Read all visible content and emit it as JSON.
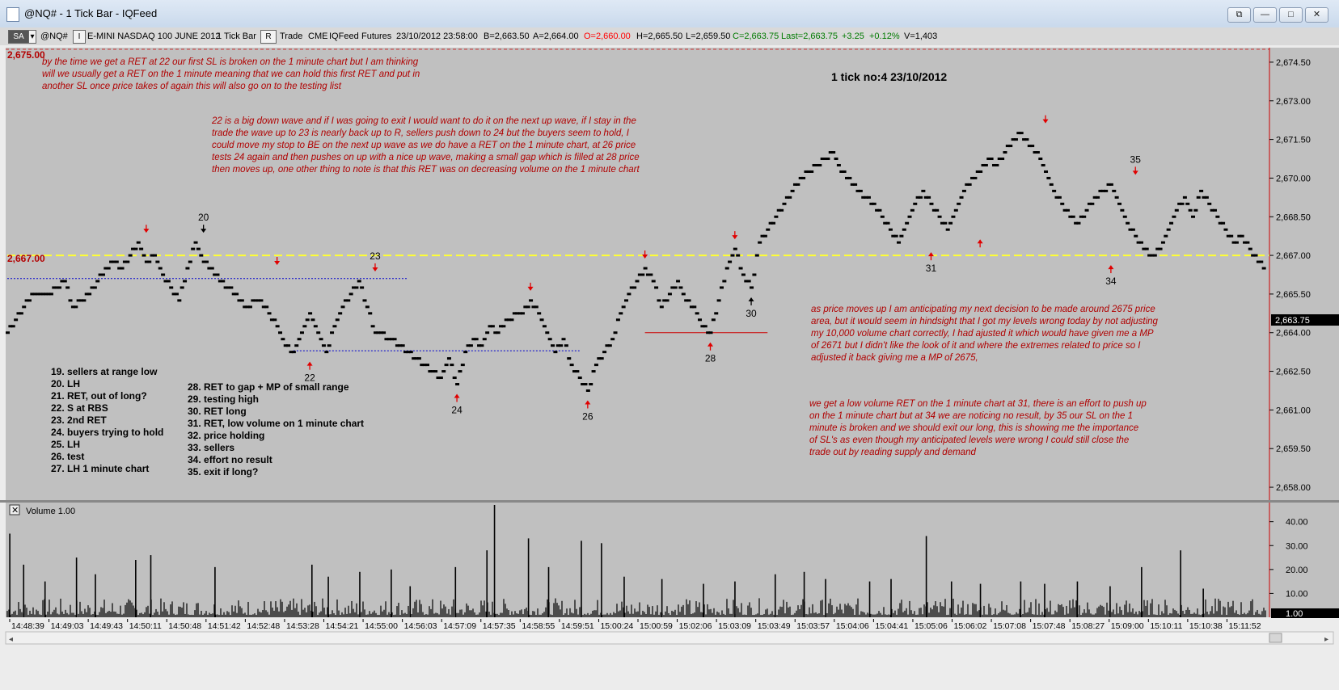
{
  "window": {
    "title": "@NQ# - 1 Tick Bar - IQFeed",
    "controls": [
      "⧉",
      "—",
      "□",
      "✕"
    ]
  },
  "toolbar": {
    "sa_label": "SA",
    "symbol": "@NQ#",
    "i_btn": "I",
    "instrument": "E-MINI NASDAQ 100 JUNE 2012",
    "interval": "1 Tick Bar",
    "r_btn": "R",
    "type": "Trade",
    "exchange": "CME",
    "feed": "IQFeed",
    "asset": "Futures",
    "datetime": "23/10/2012  23:58:00",
    "bid": "B=2,663.50",
    "ask": "A=2,664.00",
    "open": "O=2,660.00",
    "high": "H=2,665.50",
    "low": "L=2,659.50",
    "close": "C=2,663.75",
    "last": "Last=2,663.75",
    "change": "+3.25",
    "change_pct": "+0.12%",
    "volume": "V=1,403",
    "colors": {
      "open": "#ff0000",
      "close": "#007a00",
      "last": "#007a00",
      "change": "#007a00"
    }
  },
  "chart_data": [
    {
      "type": "scatter",
      "title": "1 tick no:4 23/10/2012",
      "ylim": [
        2657.5,
        2675.0
      ],
      "y_ticks": [
        "2,674.50",
        "2,673.00",
        "2,671.50",
        "2,670.00",
        "2,668.50",
        "2,667.00",
        "2,665.50",
        "2,664.00",
        "2,662.50",
        "2,661.00",
        "2,659.50",
        "2,658.00"
      ],
      "x_tick_labels": [
        "14:48:39",
        "14:49:03",
        "14:49:43",
        "14:50:11",
        "14:50:48",
        "14:51:42",
        "14:52:48",
        "14:53:28",
        "14:54:21",
        "14:55:00",
        "14:56:03",
        "14:57:09",
        "14:57:35",
        "14:58:55",
        "14:59:51",
        "15:00:24",
        "15:00:59",
        "15:02:06",
        "15:03:09",
        "15:03:49",
        "15:03:57",
        "15:04:06",
        "15:04:41",
        "15:05:06",
        "15:06:02",
        "15:07:08",
        "15:07:48",
        "15:08:27",
        "15:09:00",
        "15:10:11",
        "15:10:38",
        "15:11:52"
      ],
      "price_path": [
        [
          0,
          2664.0
        ],
        [
          2,
          2665.0
        ],
        [
          3,
          2665.5
        ],
        [
          5,
          2665.5
        ],
        [
          7,
          2666.0
        ],
        [
          8,
          2665.0
        ],
        [
          10,
          2665.5
        ],
        [
          11,
          2666.0
        ],
        [
          13,
          2666.75
        ],
        [
          14,
          2666.5
        ],
        [
          16,
          2667.5
        ],
        [
          17,
          2666.75
        ],
        [
          18,
          2667.0
        ],
        [
          19,
          2666.25
        ],
        [
          20,
          2665.75
        ],
        [
          21,
          2665.25
        ],
        [
          22,
          2666.5
        ],
        [
          23,
          2667.5
        ],
        [
          24,
          2666.75
        ],
        [
          26,
          2666.0
        ],
        [
          28,
          2665.5
        ],
        [
          29,
          2665.0
        ],
        [
          31,
          2665.25
        ],
        [
          33,
          2664.25
        ],
        [
          34,
          2663.5
        ],
        [
          35,
          2663.25
        ],
        [
          36,
          2664.0
        ],
        [
          37,
          2664.75
        ],
        [
          38,
          2664.0
        ],
        [
          39,
          2663.25
        ],
        [
          40,
          2664.25
        ],
        [
          41,
          2665.0
        ],
        [
          42,
          2665.5
        ],
        [
          43,
          2666.0
        ],
        [
          44,
          2665.0
        ],
        [
          45,
          2664.0
        ],
        [
          47,
          2663.75
        ],
        [
          49,
          2663.25
        ],
        [
          51,
          2662.75
        ],
        [
          53,
          2662.25
        ],
        [
          54,
          2663.0
        ],
        [
          55,
          2662.0
        ],
        [
          56,
          2663.25
        ],
        [
          57,
          2663.75
        ],
        [
          58,
          2663.5
        ],
        [
          59,
          2664.25
        ],
        [
          60,
          2664.0
        ],
        [
          61,
          2664.5
        ],
        [
          63,
          2664.75
        ],
        [
          64,
          2665.25
        ],
        [
          65,
          2664.75
        ],
        [
          66,
          2664.0
        ],
        [
          67,
          2663.25
        ],
        [
          68,
          2663.75
        ],
        [
          69,
          2662.75
        ],
        [
          70,
          2662.25
        ],
        [
          71,
          2661.75
        ],
        [
          72,
          2662.75
        ],
        [
          73,
          2663.25
        ],
        [
          74,
          2663.75
        ],
        [
          75,
          2664.75
        ],
        [
          76,
          2665.5
        ],
        [
          77,
          2666.0
        ],
        [
          78,
          2666.5
        ],
        [
          79,
          2666.0
        ],
        [
          80,
          2665.0
        ],
        [
          81,
          2665.5
        ],
        [
          82,
          2666.0
        ],
        [
          83,
          2665.25
        ],
        [
          84,
          2665.0
        ],
        [
          85,
          2664.25
        ],
        [
          86,
          2664.0
        ],
        [
          87,
          2665.25
        ],
        [
          88,
          2666.5
        ],
        [
          89,
          2667.25
        ],
        [
          90,
          2666.25
        ],
        [
          91,
          2665.75
        ],
        [
          92,
          2667.5
        ],
        [
          93,
          2668.0
        ],
        [
          94,
          2668.5
        ],
        [
          95,
          2669.0
        ],
        [
          96,
          2669.5
        ],
        [
          97,
          2670.0
        ],
        [
          98,
          2670.25
        ],
        [
          99,
          2670.5
        ],
        [
          100,
          2670.75
        ],
        [
          101,
          2671.0
        ],
        [
          102,
          2670.25
        ],
        [
          103,
          2670.0
        ],
        [
          104,
          2669.5
        ],
        [
          105,
          2669.25
        ],
        [
          106,
          2669.0
        ],
        [
          107,
          2668.5
        ],
        [
          108,
          2668.0
        ],
        [
          109,
          2667.5
        ],
        [
          110,
          2668.25
        ],
        [
          111,
          2669.0
        ],
        [
          112,
          2669.5
        ],
        [
          113,
          2669.0
        ],
        [
          114,
          2668.5
        ],
        [
          115,
          2668.0
        ],
        [
          116,
          2668.75
        ],
        [
          117,
          2669.5
        ],
        [
          118,
          2670.0
        ],
        [
          119,
          2670.25
        ],
        [
          120,
          2670.75
        ],
        [
          121,
          2670.5
        ],
        [
          122,
          2671.0
        ],
        [
          123,
          2671.5
        ],
        [
          124,
          2671.75
        ],
        [
          125,
          2671.25
        ],
        [
          126,
          2671.0
        ],
        [
          127,
          2670.25
        ],
        [
          128,
          2669.5
        ],
        [
          129,
          2669.0
        ],
        [
          130,
          2668.5
        ],
        [
          131,
          2668.25
        ],
        [
          132,
          2668.75
        ],
        [
          133,
          2669.25
        ],
        [
          134,
          2669.5
        ],
        [
          135,
          2669.75
        ],
        [
          136,
          2669.0
        ],
        [
          137,
          2668.25
        ],
        [
          138,
          2667.75
        ],
        [
          139,
          2667.25
        ],
        [
          140,
          2667.0
        ],
        [
          141,
          2667.25
        ],
        [
          142,
          2668.0
        ],
        [
          143,
          2668.75
        ],
        [
          144,
          2669.25
        ],
        [
          145,
          2668.5
        ],
        [
          146,
          2669.5
        ],
        [
          147,
          2669.0
        ],
        [
          148,
          2668.5
        ],
        [
          149,
          2668.0
        ],
        [
          150,
          2667.5
        ],
        [
          151,
          2667.75
        ],
        [
          152,
          2667.25
        ],
        [
          153,
          2666.75
        ],
        [
          154,
          2666.5
        ]
      ],
      "horizontal_levels": [
        {
          "label": "2,667.00",
          "value": 2667.0,
          "color": "#ffff33",
          "style": "dashed"
        },
        {
          "value": 2666.1,
          "color": "#0000cc",
          "style": "dotted",
          "x_range": [
            0,
            49
          ]
        },
        {
          "value": 2663.3,
          "color": "#0000cc",
          "style": "dotted",
          "x_range": [
            35,
            70
          ]
        },
        {
          "value": 2664.0,
          "color": "#cc0000",
          "style": "solid",
          "x_range": [
            78,
            93
          ]
        }
      ],
      "top_marker": "2,675.00",
      "last_price_label": "2,663.75",
      "markers": [
        {
          "x": 17,
          "y": 2667.5,
          "dir": "down",
          "color": "red"
        },
        {
          "x": 24,
          "y": 2667.5,
          "dir": "down",
          "color": "black",
          "label": "20"
        },
        {
          "x": 33,
          "y": 2666.25,
          "dir": "down",
          "color": "red"
        },
        {
          "x": 37,
          "y": 2663.25,
          "dir": "up",
          "color": "red",
          "label": "22"
        },
        {
          "x": 45,
          "y": 2666.0,
          "dir": "down",
          "color": "red",
          "label": "23"
        },
        {
          "x": 55,
          "y": 2662.0,
          "dir": "up",
          "color": "red",
          "label": "24"
        },
        {
          "x": 64,
          "y": 2665.25,
          "dir": "down",
          "color": "red"
        },
        {
          "x": 71,
          "y": 2661.75,
          "dir": "up",
          "color": "red",
          "label": "26"
        },
        {
          "x": 78,
          "y": 2666.5,
          "dir": "down",
          "color": "red"
        },
        {
          "x": 86,
          "y": 2664.0,
          "dir": "up",
          "color": "red",
          "label": "28"
        },
        {
          "x": 89,
          "y": 2667.25,
          "dir": "down",
          "color": "red"
        },
        {
          "x": 91,
          "y": 2665.75,
          "dir": "up",
          "color": "black",
          "label": "30"
        },
        {
          "x": 113,
          "y": 2667.5,
          "dir": "up",
          "color": "red",
          "label": "31"
        },
        {
          "x": 119,
          "y": 2668.0,
          "dir": "up",
          "color": "red"
        },
        {
          "x": 127,
          "y": 2671.75,
          "dir": "down",
          "color": "red"
        },
        {
          "x": 135,
          "y": 2667.0,
          "dir": "up",
          "color": "red",
          "label": "34"
        },
        {
          "x": 138,
          "y": 2669.75,
          "dir": "down",
          "color": "red",
          "label": "35"
        }
      ],
      "annotations": {
        "note1": [
          "by the time we get a RET at 22 our first SL is broken on the 1 minute chart but I am thinking",
          "will we usually get a RET on the 1 minute meaning that we can hold this first RET and put in",
          "another SL once price takes of again this will also go on to the testing list"
        ],
        "note2": [
          "22 is a big down wave and if I was going to exit I would want to do it on the next up wave, if I stay in the",
          "trade the wave up to 23 is nearly back up to R, sellers push down to 24 but the buyers seem to hold, I",
          "could move my stop to BE on the next up wave as we do have a RET on the 1 minute chart, at 26 price",
          "tests 24 again and then pushes on up with a nice up wave, making a small gap which is filled at 28 price",
          "then moves up, one other thing to note is that this RET was on decreasing volume on the 1 minute chart"
        ],
        "note3": [
          "as price moves up I am anticipating my next decision to be made around 2675 price",
          "area, but it would seem in hindsight that I got my levels wrong today by not adjusting",
          "my 10,000 volume chart correctly, I had ajusted it which would have given me a MP",
          "of 2671 but I didn't like the look of it and where the extremes related to price so I",
          "adjusted it back giving me a MP of 2675,"
        ],
        "note4": [
          "we get a low volume RET on the 1 minute chart at 31, there is an effort to push up",
          "on the 1 minute chart but at 34 we are noticing no result, by 35 our SL on the 1",
          "minute is broken and we should exit our long, this is showing me the importance",
          "of SL's as even though my anticipated levels were wrong I could still close the",
          "trade out by reading supply and demand"
        ]
      },
      "legend_left": [
        "19. sellers at range low",
        "20. LH",
        "21. RET, out of long?",
        "22. S at RBS",
        "23. 2nd RET",
        "24. buyers trying to hold",
        "25. LH",
        "26. test",
        "27. LH 1 minute chart"
      ],
      "legend_right": [
        "28. RET to gap + MP of small range",
        "29. testing high",
        "30. RET long",
        "31. RET, low volume on 1 minute chart",
        "32. price holding",
        "33. sellers",
        "34. effort no result",
        "35. exit if long?"
      ]
    },
    {
      "type": "bar",
      "title": "Volume  1.00",
      "ylim": [
        0,
        48
      ],
      "y_ticks": [
        "40.00",
        "30.00",
        "20.00",
        "10.00"
      ],
      "last_value_label": "1.00",
      "spikes": [
        [
          0.2,
          35
        ],
        [
          1.3,
          22
        ],
        [
          3.0,
          15
        ],
        [
          5.5,
          25
        ],
        [
          7.0,
          18
        ],
        [
          10.2,
          24
        ],
        [
          11.4,
          26
        ],
        [
          16.5,
          21
        ],
        [
          24.2,
          22
        ],
        [
          25.5,
          17
        ],
        [
          28.0,
          19
        ],
        [
          30.5,
          20
        ],
        [
          32.0,
          13
        ],
        [
          35.6,
          21
        ],
        [
          38.1,
          28
        ],
        [
          38.7,
          47
        ],
        [
          41.4,
          33
        ],
        [
          43.0,
          21
        ],
        [
          45.6,
          32
        ],
        [
          47.2,
          31
        ],
        [
          49.0,
          17
        ],
        [
          52.0,
          16
        ],
        [
          55.3,
          14
        ],
        [
          57.8,
          15
        ],
        [
          61.0,
          18
        ],
        [
          63.3,
          19
        ],
        [
          65.0,
          16
        ],
        [
          68.5,
          15
        ],
        [
          70.2,
          16
        ],
        [
          73.0,
          34
        ],
        [
          75.0,
          15
        ],
        [
          77.3,
          14
        ],
        [
          80.5,
          15
        ],
        [
          82.4,
          14
        ],
        [
          85.0,
          15
        ],
        [
          87.6,
          13
        ],
        [
          90.1,
          21
        ],
        [
          93.2,
          28
        ],
        [
          95.0,
          12
        ]
      ]
    }
  ]
}
